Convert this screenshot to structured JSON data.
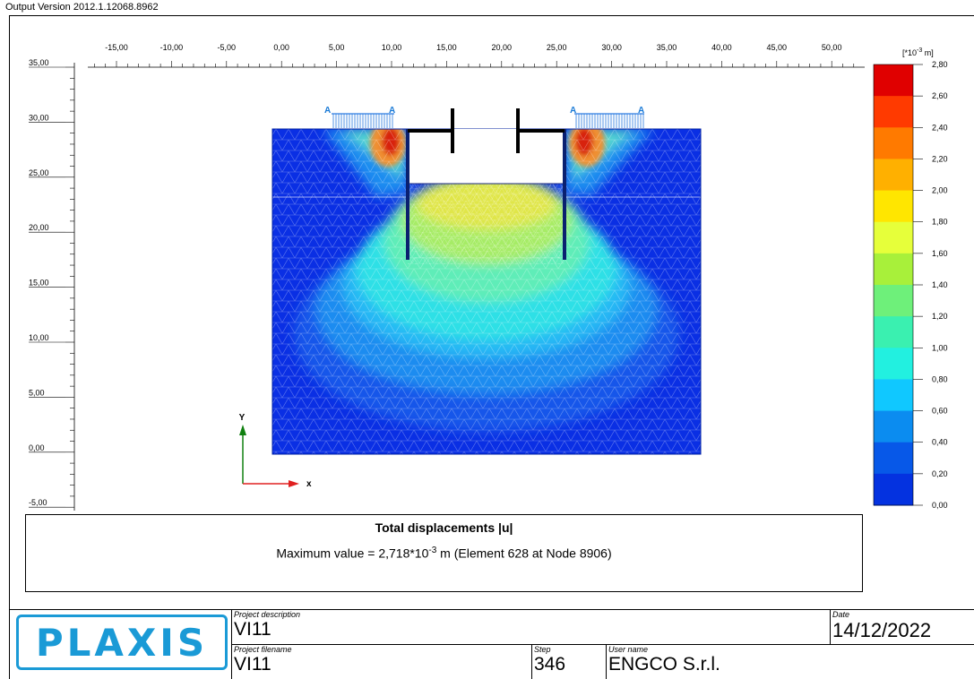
{
  "header": {
    "version": "Output Version 2012.1.12068.8962"
  },
  "chart_data": {
    "type": "heatmap",
    "x_ticks": [
      "-15,00",
      "-10,00",
      "-5,00",
      "0,00",
      "5,00",
      "10,00",
      "15,00",
      "20,00",
      "25,00",
      "30,00",
      "35,00",
      "40,00",
      "45,00",
      "50,00"
    ],
    "y_ticks": [
      "35,00",
      "30,00",
      "25,00",
      "20,00",
      "15,00",
      "10,00",
      "5,00",
      "0,00",
      "-5,00"
    ],
    "axis_x_label": "x",
    "axis_y_label": "Y",
    "load_labels": [
      "A",
      "A",
      "A",
      "A"
    ],
    "xlim": [
      -15,
      50
    ],
    "ylim": [
      -5,
      35
    ],
    "legend_unit": "[*10",
    "legend_unit_exp": "-3",
    "legend_unit_tail": " m]",
    "legend_values": [
      "2,80",
      "2,60",
      "2,40",
      "2,20",
      "2,00",
      "1,80",
      "1,60",
      "1,40",
      "1,20",
      "1,00",
      "0,80",
      "0,60",
      "0,40",
      "0,20",
      "0,00"
    ],
    "legend_colors": [
      "#e00000",
      "#ff3a00",
      "#ff7a00",
      "#ffb000",
      "#ffe600",
      "#e6ff3a",
      "#a8f03a",
      "#6ef07a",
      "#3af0b0",
      "#22f0e0",
      "#10c8ff",
      "#0b8cf0",
      "#0758e8",
      "#0432e0",
      "#0010d8"
    ],
    "title": "Total displacements |u|",
    "max_value_prefix": "Maximum value = 2,718*10",
    "max_value_exp": "-3",
    "max_value_suffix": " m (Element 628 at Node 8906)"
  },
  "footer": {
    "logo_text": "PLAXIS",
    "project_description_label": "Project description",
    "project_description": "VI11",
    "project_filename_label": "Project filename",
    "project_filename": "VI11",
    "step_label": "Step",
    "step": "346",
    "user_label": "User name",
    "user": "ENGCO S.r.l.",
    "date_label": "Date",
    "date": "14/12/2022"
  }
}
